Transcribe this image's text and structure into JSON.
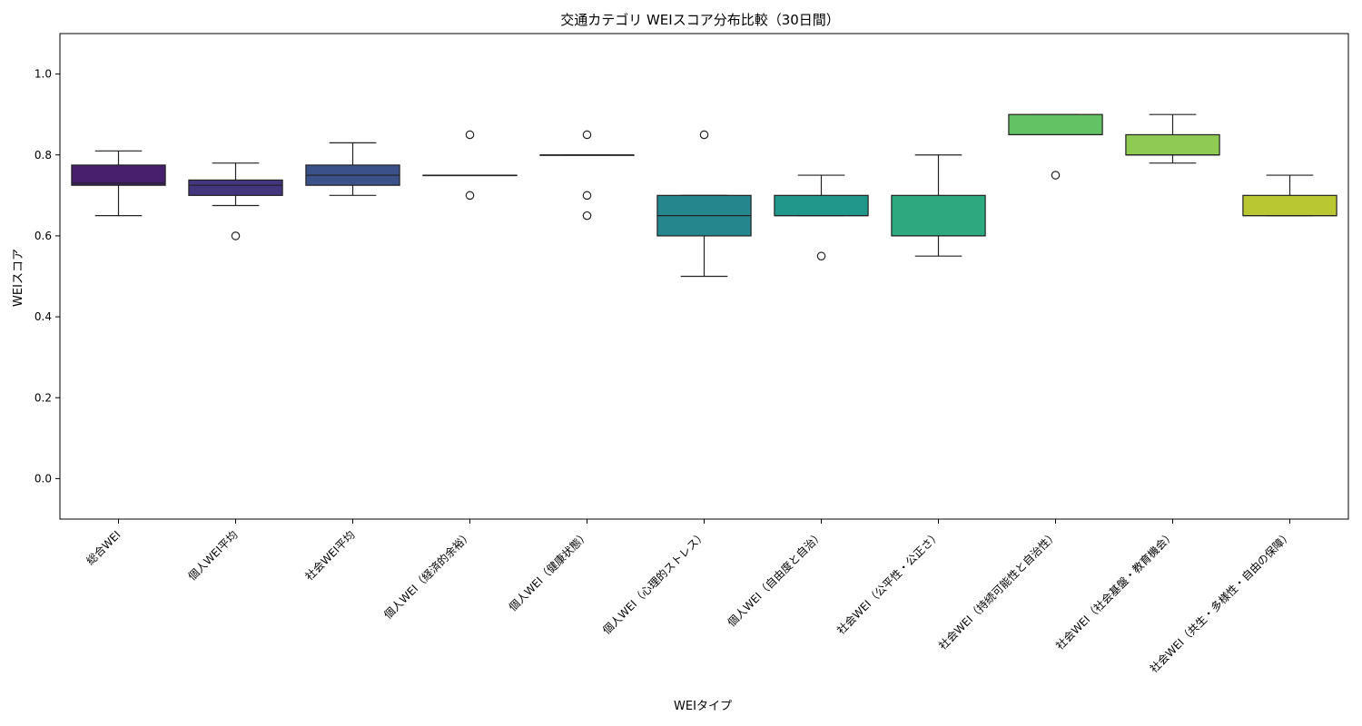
{
  "chart_data": {
    "type": "box",
    "title": "交通カテゴリ WEIスコア分布比較（30日間）",
    "xlabel": "WEIタイプ",
    "ylabel": "WEIスコア",
    "ylim": [
      -0.1,
      1.1
    ],
    "yticks": [
      "0.0",
      "0.2",
      "0.4",
      "0.6",
      "0.8",
      "1.0"
    ],
    "grid": false,
    "categories": [
      "総合WEI",
      "個人WEI平均",
      "社会WEI平均",
      "個人WEI（経済的余裕）",
      "個人WEI（健康状態）",
      "個人WEI（心理的ストレス）",
      "個人WEI（自由度と自治）",
      "社会WEI（公平性・公正さ）",
      "社会WEI（持続可能性と自治性）",
      "社会WEI（社会基盤・教育機会）",
      "社会WEI（共生・多様性・自由の保障）"
    ],
    "boxes": [
      {
        "whisker_low": 0.65,
        "q1": 0.725,
        "median": 0.73,
        "q3": 0.775,
        "whisker_high": 0.81,
        "outliers": [],
        "color": "#46206c"
      },
      {
        "whisker_low": 0.675,
        "q1": 0.7,
        "median": 0.725,
        "q3": 0.738,
        "whisker_high": 0.78,
        "outliers": [
          0.6
        ],
        "color": "#44357f"
      },
      {
        "whisker_low": 0.7,
        "q1": 0.725,
        "median": 0.75,
        "q3": 0.775,
        "whisker_high": 0.83,
        "outliers": [],
        "color": "#3b5189"
      },
      {
        "whisker_low": 0.75,
        "q1": 0.75,
        "median": 0.75,
        "q3": 0.75,
        "whisker_high": 0.75,
        "outliers": [
          0.85,
          0.7
        ],
        "color": "#33648d"
      },
      {
        "whisker_low": 0.8,
        "q1": 0.8,
        "median": 0.8,
        "q3": 0.8,
        "whisker_high": 0.8,
        "outliers": [
          0.85,
          0.7,
          0.65
        ],
        "color": "#2b768e"
      },
      {
        "whisker_low": 0.5,
        "q1": 0.6,
        "median": 0.65,
        "q3": 0.7,
        "whisker_high": 0.7,
        "outliers": [
          0.85
        ],
        "color": "#25878e"
      },
      {
        "whisker_low": 0.65,
        "q1": 0.65,
        "median": 0.65,
        "q3": 0.7,
        "whisker_high": 0.75,
        "outliers": [
          0.55
        ],
        "color": "#1f988b"
      },
      {
        "whisker_low": 0.55,
        "q1": 0.6,
        "median": 0.6,
        "q3": 0.7,
        "whisker_high": 0.8,
        "outliers": [],
        "color": "#2ca97f"
      },
      {
        "whisker_low": 0.85,
        "q1": 0.85,
        "median": 0.85,
        "q3": 0.9,
        "whisker_high": 0.9,
        "outliers": [
          0.75
        ],
        "color": "#63c264"
      },
      {
        "whisker_low": 0.78,
        "q1": 0.8,
        "median": 0.8,
        "q3": 0.85,
        "whisker_high": 0.9,
        "outliers": [],
        "color": "#8fca52"
      },
      {
        "whisker_low": 0.65,
        "q1": 0.65,
        "median": 0.65,
        "q3": 0.7,
        "whisker_high": 0.75,
        "outliers": [],
        "color": "#b9c732"
      }
    ]
  }
}
